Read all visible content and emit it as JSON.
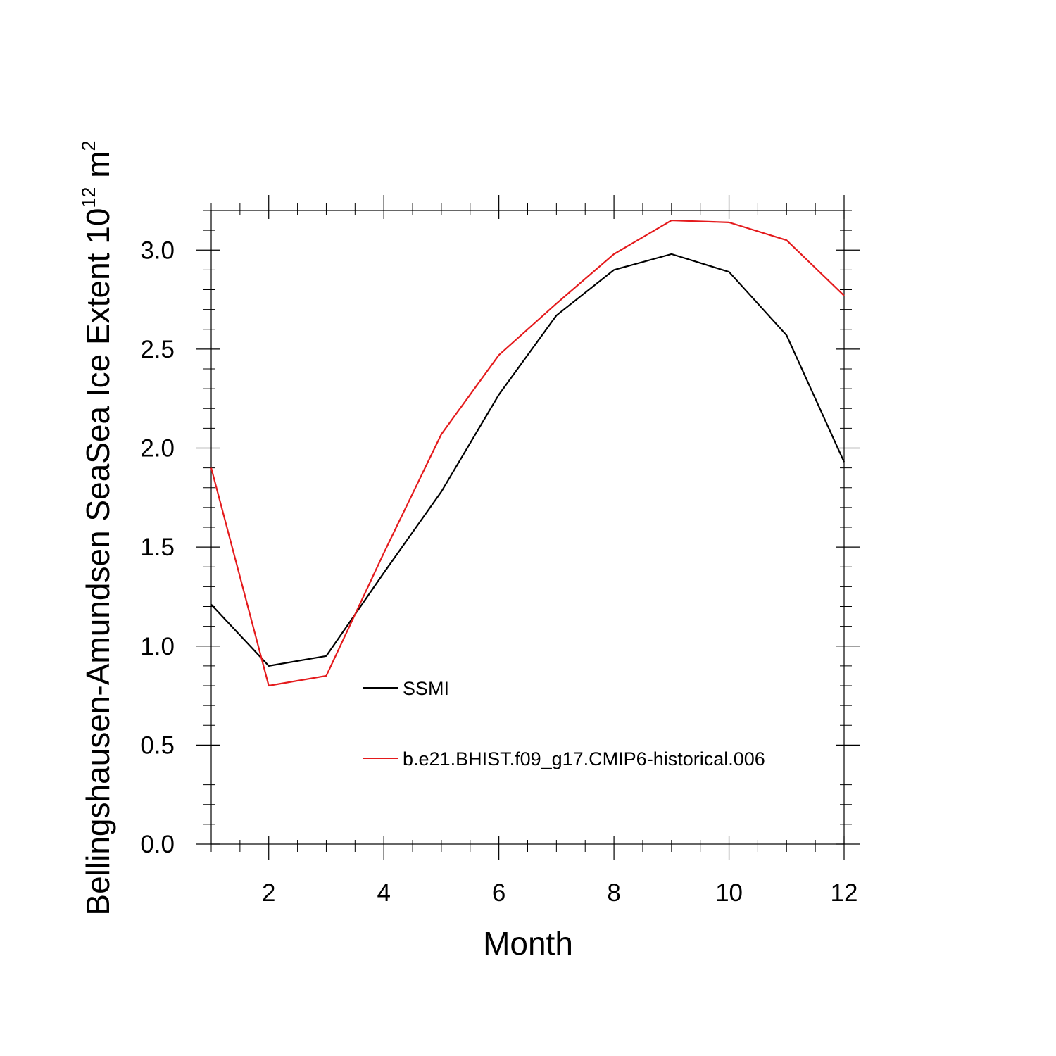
{
  "chart_data": {
    "type": "line",
    "title": "",
    "xlabel": "Month",
    "ylabel": {
      "main": "Bellingshausen-Amundsen SeaSea Ice Extent 10",
      "superscript": "12",
      "unit": " m",
      "unit_superscript": "2"
    },
    "xlim": [
      1,
      12
    ],
    "ylim": [
      0,
      3.2
    ],
    "xticks": [
      2,
      4,
      6,
      8,
      10,
      12
    ],
    "yticks": [
      0.0,
      0.5,
      1.0,
      1.5,
      2.0,
      2.5,
      3.0
    ],
    "xtick_labels": [
      "2",
      "4",
      "6",
      "8",
      "10",
      "12"
    ],
    "ytick_labels": [
      "0.0",
      "0.5",
      "1.0",
      "1.5",
      "2.0",
      "2.5",
      "3.0"
    ],
    "grid": false,
    "legend_position": "inside-lower-center",
    "x": [
      1,
      2,
      3,
      4,
      5,
      6,
      7,
      8,
      9,
      10,
      11,
      12
    ],
    "series": [
      {
        "name": "SSMI",
        "color": "#000000",
        "values": [
          1.21,
          0.9,
          0.95,
          1.37,
          1.78,
          2.27,
          2.67,
          2.9,
          2.98,
          2.89,
          2.57,
          1.93
        ]
      },
      {
        "name": "b.e21.BHIST.f09_g17.CMIP6-historical.006",
        "color": "#e41a1c",
        "values": [
          1.9,
          0.8,
          0.85,
          1.47,
          2.07,
          2.47,
          2.73,
          2.98,
          3.15,
          3.14,
          3.05,
          2.77
        ]
      }
    ]
  }
}
